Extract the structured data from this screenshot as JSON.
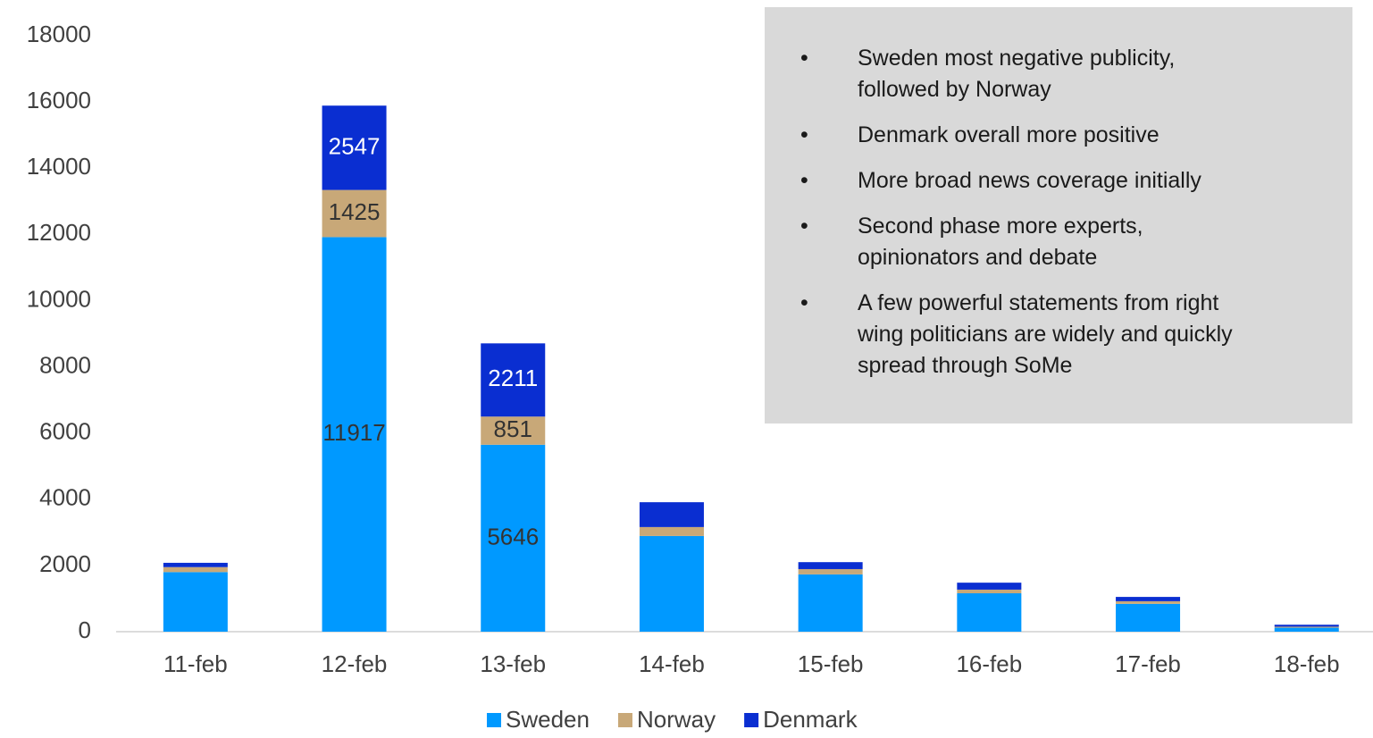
{
  "chart_data": {
    "type": "bar",
    "stacked": true,
    "categories": [
      "11-feb",
      "12-feb",
      "13-feb",
      "14-feb",
      "15-feb",
      "16-feb",
      "17-feb",
      "18-feb"
    ],
    "series": [
      {
        "name": "Sweden",
        "color": "#0099ff",
        "values": [
          1800,
          11917,
          5646,
          2890,
          1730,
          1160,
          840,
          120
        ],
        "value_labels": [
          null,
          "11917",
          "5646",
          null,
          null,
          null,
          null,
          null
        ]
      },
      {
        "name": "Norway",
        "color": "#c8a878",
        "values": [
          150,
          1425,
          851,
          270,
          160,
          110,
          80,
          30
        ],
        "value_labels": [
          null,
          "1425",
          "851",
          null,
          null,
          null,
          null,
          null
        ]
      },
      {
        "name": "Denmark",
        "color": "#0a2ed1",
        "values": [
          130,
          2547,
          2211,
          750,
          210,
          210,
          130,
          60
        ],
        "value_labels": [
          null,
          "2547",
          "2211",
          null,
          null,
          null,
          null,
          null
        ]
      }
    ],
    "ylim": [
      0,
      18000
    ],
    "yticks": [
      0,
      2000,
      4000,
      6000,
      8000,
      10000,
      12000,
      14000,
      16000,
      18000
    ],
    "grid": false,
    "legend": "bottom",
    "annotation": {
      "bullet": "•",
      "items": [
        [
          "Sweden most negative publicity,",
          "followed by Norway"
        ],
        [
          "Denmark overall more positive"
        ],
        [
          "More broad news coverage initially"
        ],
        [
          "Second phase more experts,",
          "opinionators and debate"
        ],
        [
          "A few powerful statements from right",
          "wing politicians are widely and quickly",
          "spread through SoMe"
        ]
      ]
    }
  }
}
